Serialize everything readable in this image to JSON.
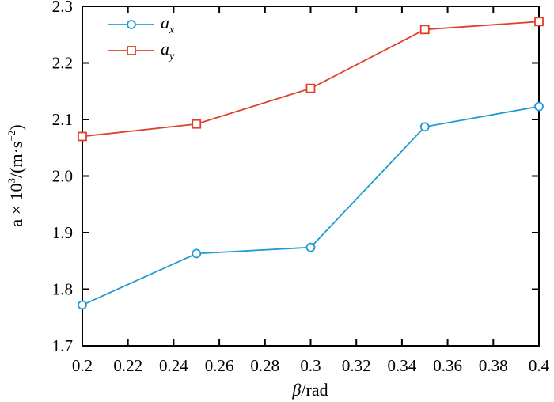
{
  "chart_data": {
    "type": "line",
    "xlabel": {
      "symbol": "β",
      "unit": "/rad"
    },
    "ylabel": {
      "prefix": "a × 10",
      "exp1": "3",
      "unit_open": "/(m·s",
      "exp2": "−2",
      "unit_close": ")"
    },
    "xlim": [
      0.2,
      0.4
    ],
    "ylim": [
      1.7,
      2.3
    ],
    "xticks": [
      "0.2",
      "0.22",
      "0.24",
      "0.26",
      "0.28",
      "0.3",
      "0.32",
      "0.34",
      "0.36",
      "0.38",
      "0.4"
    ],
    "yticks": [
      "1.7",
      "1.8",
      "1.9",
      "2.0",
      "2.1",
      "2.2",
      "2.3"
    ],
    "x": [
      0.2,
      0.25,
      0.3,
      0.35,
      0.4
    ],
    "series": [
      {
        "name_base": "a",
        "name_sub": "x",
        "color": "#1f9bd1",
        "marker": "circle",
        "values": [
          1.772,
          1.863,
          1.874,
          2.087,
          2.123
        ]
      },
      {
        "name_base": "a",
        "name_sub": "y",
        "color": "#e0402a",
        "marker": "square",
        "values": [
          2.07,
          2.092,
          2.155,
          2.259,
          2.273
        ]
      }
    ],
    "grid": false,
    "legend_position": "top-left"
  }
}
